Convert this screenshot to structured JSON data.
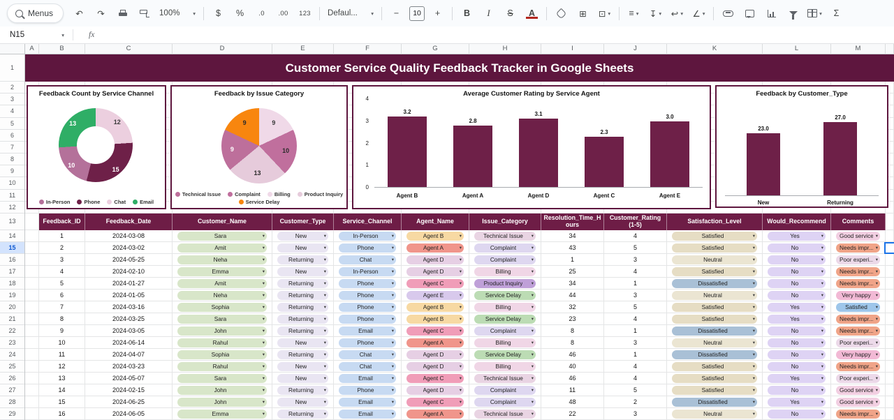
{
  "toolbar": {
    "menus": "Menus",
    "zoom": "100%",
    "currency": "$",
    "percent": "%",
    "decrease_decimal": ".0",
    "increase_decimal": ".00",
    "more_formats": "123",
    "font": "Defaul...",
    "font_size": "10",
    "bold": "B",
    "italic": "I",
    "strikethrough": "S",
    "text_color": "A",
    "functions": "Σ"
  },
  "icons": {
    "dropdown": "▾",
    "undo": "↶",
    "redo": "↷",
    "minus": "−",
    "plus": "+",
    "borders": "⊞",
    "merge": "⊡",
    "align": "≡",
    "valign": "↧",
    "wrap": "↩",
    "rotate": "∠"
  },
  "formula_bar": {
    "name_box": "N15",
    "fx": "fx"
  },
  "sheet": {
    "banner": "Customer Service Quality Feedback Tracker in Google Sheets",
    "column_letters": [
      "A",
      "B",
      "C",
      "D",
      "E",
      "F",
      "G",
      "H",
      "I",
      "J",
      "K",
      "L",
      "M"
    ],
    "row_count": 29,
    "selected_row": 15,
    "selected_cell": "N15"
  },
  "chart_data": [
    {
      "type": "donut",
      "title": "Feedback Count by Service Channel",
      "slices": [
        {
          "label": "Chat",
          "value": 12,
          "color": "#eccfdf",
          "text": "#3a3a3a"
        },
        {
          "label": "Phone",
          "value": 15,
          "color": "#6e2048",
          "text": "#ffffff"
        },
        {
          "label": "In-Person",
          "value": 10,
          "color": "#b4719a",
          "text": "#ffffff"
        },
        {
          "label": "Email",
          "value": 13,
          "color": "#2fae66",
          "text": "#ffffff"
        }
      ],
      "legend": [
        "In-Person",
        "Phone",
        "Chat",
        "Email"
      ]
    },
    {
      "type": "pie",
      "title": "Feedback by Issue Category",
      "slices": [
        {
          "label": "Billing",
          "value": 9,
          "color": "#f0d9e8",
          "text": "#3a3a3a"
        },
        {
          "label": "Complaint",
          "value": 10,
          "color": "#c06f9d",
          "text": "#2b2b2b"
        },
        {
          "label": "Product Inquiry",
          "value": 13,
          "color": "#e6cbdb",
          "text": "#2b2b2b"
        },
        {
          "label": "Technical Issue",
          "value": 9,
          "color": "#bd6f9b",
          "text": "#ffffff"
        },
        {
          "label": "Service Delay",
          "value": 9,
          "color": "#f8860f",
          "text": "#2b2b2b"
        }
      ],
      "legend": [
        "Technical Issue",
        "Complaint",
        "Billing",
        "Product Inquiry",
        "Service Delay"
      ]
    },
    {
      "type": "bar",
      "title": "Average Customer Rating by Service Agent",
      "categories": [
        "Agent B",
        "Agent A",
        "Agent D",
        "Agent C",
        "Agent E"
      ],
      "values": [
        3.2,
        2.8,
        3.1,
        2.3,
        3.0
      ],
      "labels": [
        "3.2",
        "2.8",
        "3.1",
        "2.3",
        "3.0"
      ],
      "yticks": [
        "4",
        "3",
        "2",
        "1",
        "0"
      ],
      "ylim": [
        0,
        4
      ],
      "bar_color": "#6e2048"
    },
    {
      "type": "bar",
      "title": "Feedback by Customer_Type",
      "categories": [
        "New",
        "Returning"
      ],
      "values": [
        23,
        27
      ],
      "labels": [
        "23.0",
        "27.0"
      ],
      "yticks": [],
      "ylim": [
        0,
        31
      ],
      "bar_color": "#6e2048"
    }
  ],
  "table": {
    "headers": [
      "Feedback_ID",
      "Feedback_Date",
      "Customer_Name",
      "Customer_Type",
      "Service_Channel",
      "Agent_Name",
      "Issue_Category",
      "Resolution_Time_Hours",
      "Customer_Rating (1-5)",
      "Satisfaction_Level",
      "Would_Recommend",
      "Comments"
    ],
    "rows": [
      [
        "1",
        "2024-03-08",
        "Sara",
        "New",
        "In-Person",
        "Agent B",
        "Technical Issue",
        "34",
        "4",
        "Satisfied",
        "Yes",
        "Good service"
      ],
      [
        "2",
        "2024-03-02",
        "Amit",
        "New",
        "Phone",
        "Agent A",
        "Complaint",
        "43",
        "5",
        "Satisfied",
        "No",
        "Needs impr..."
      ],
      [
        "3",
        "2024-05-25",
        "Neha",
        "Returning",
        "Chat",
        "Agent D",
        "Complaint",
        "1",
        "3",
        "Neutral",
        "No",
        "Poor experi..."
      ],
      [
        "4",
        "2024-02-10",
        "Emma",
        "New",
        "In-Person",
        "Agent D",
        "Billing",
        "25",
        "4",
        "Satisfied",
        "No",
        "Needs impr..."
      ],
      [
        "5",
        "2024-01-27",
        "Amit",
        "Returning",
        "Phone",
        "Agent C",
        "Product Inquiry",
        "34",
        "1",
        "Dissatisfied",
        "No",
        "Needs impr..."
      ],
      [
        "6",
        "2024-01-05",
        "Neha",
        "Returning",
        "Phone",
        "Agent E",
        "Service Delay",
        "44",
        "3",
        "Neutral",
        "No",
        "Very happy"
      ],
      [
        "7",
        "2024-03-16",
        "Sophia",
        "Returning",
        "Phone",
        "Agent B",
        "Billing",
        "32",
        "5",
        "Satisfied",
        "Yes",
        "Satisfied"
      ],
      [
        "8",
        "2024-03-25",
        "Sara",
        "Returning",
        "Phone",
        "Agent B",
        "Service Delay",
        "23",
        "4",
        "Satisfied",
        "Yes",
        "Needs impr..."
      ],
      [
        "9",
        "2024-03-05",
        "John",
        "Returning",
        "Email",
        "Agent C",
        "Complaint",
        "8",
        "1",
        "Dissatisfied",
        "No",
        "Needs impr..."
      ],
      [
        "10",
        "2024-06-14",
        "Rahul",
        "New",
        "Phone",
        "Agent A",
        "Billing",
        "8",
        "3",
        "Neutral",
        "No",
        "Poor experi..."
      ],
      [
        "11",
        "2024-04-07",
        "Sophia",
        "Returning",
        "Chat",
        "Agent D",
        "Service Delay",
        "46",
        "1",
        "Dissatisfied",
        "No",
        "Very happy"
      ],
      [
        "12",
        "2024-03-23",
        "Rahul",
        "New",
        "Chat",
        "Agent D",
        "Billing",
        "40",
        "4",
        "Satisfied",
        "No",
        "Needs impr..."
      ],
      [
        "13",
        "2024-05-07",
        "Sara",
        "New",
        "Email",
        "Agent C",
        "Technical Issue",
        "46",
        "4",
        "Satisfied",
        "Yes",
        "Poor experi..."
      ],
      [
        "14",
        "2024-02-15",
        "John",
        "Returning",
        "Phone",
        "Agent D",
        "Complaint",
        "11",
        "5",
        "Satisfied",
        "No",
        "Good service"
      ],
      [
        "15",
        "2024-06-25",
        "John",
        "New",
        "Email",
        "Agent C",
        "Complaint",
        "48",
        "2",
        "Dissatisfied",
        "Yes",
        "Good service"
      ],
      [
        "16",
        "2024-06-05",
        "Emma",
        "Returning",
        "Email",
        "Agent A",
        "Technical Issue",
        "22",
        "3",
        "Neutral",
        "No",
        "Needs impr..."
      ]
    ]
  },
  "chip_colors": {
    "customer_name": {
      "*": "#d8e6c9"
    },
    "customer_type": {
      "*": "#e9e5f2"
    },
    "service_channel": {
      "*": "#c7daf2"
    },
    "agent_name": {
      "Agent A": "#f0958b",
      "Agent B": "#f7d9a3",
      "Agent C": "#f09db8",
      "Agent D": "#e6cfe4",
      "Agent E": "#d8c9ec"
    },
    "issue_category": {
      "Technical Issue": "#e9d4e3",
      "Complaint": "#ded7f0",
      "Billing": "#f0d6e6",
      "Product Inquiry": "#bfa0d8",
      "Service Delay": "#bcdcb4"
    },
    "satisfaction": {
      "Satisfied": "#e6ddc4",
      "Neutral": "#ebe5d2",
      "Dissatisfied": "#a9c0d6"
    },
    "recommend": {
      "Yes": "#ded3f4",
      "No": "#ded3f4"
    },
    "comments": {
      "Good service": "#f2cfe2",
      "Needs impr...": "#f0a488",
      "Poor experi...": "#ecd9e9",
      "Very happy": "#f2b9d5",
      "Satisfied": "#9ec6ea"
    }
  }
}
